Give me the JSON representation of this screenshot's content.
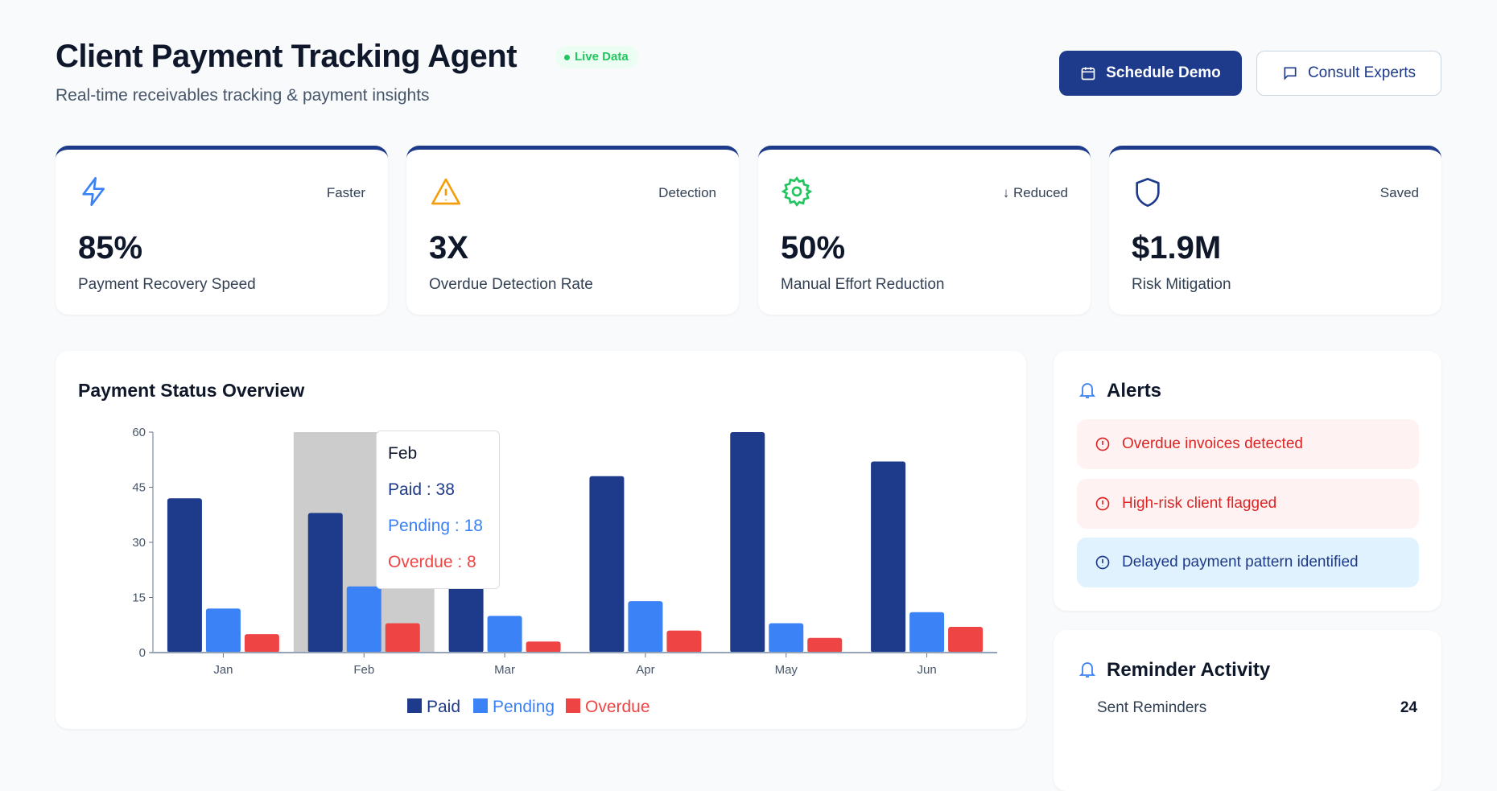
{
  "header": {
    "title": "Client Payment Tracking Agent",
    "badge": "Live Data",
    "subtitle": "Real-time receivables tracking & payment insights",
    "schedule_demo": "Schedule Demo",
    "consult_experts": "Consult Experts"
  },
  "stats": [
    {
      "icon": "lightning-icon",
      "tag": "Faster",
      "value": "85%",
      "label": "Payment Recovery Speed",
      "color": "#3b82f6"
    },
    {
      "icon": "warning-icon",
      "tag": "Detection",
      "value": "3X",
      "label": "Overdue Detection Rate",
      "color": "#f59e0b"
    },
    {
      "icon": "gear-icon",
      "tag": "↓ Reduced",
      "value": "50%",
      "label": "Manual Effort Reduction",
      "color": "#22c55e"
    },
    {
      "icon": "shield-icon",
      "tag": "Saved",
      "value": "$1.9M",
      "label": "Risk Mitigation",
      "color": "#1e3a8a"
    }
  ],
  "chart": {
    "title": "Payment Status Overview"
  },
  "chart_data": {
    "type": "bar",
    "categories": [
      "Jan",
      "Feb",
      "Mar",
      "Apr",
      "May",
      "Jun"
    ],
    "series": [
      {
        "name": "Paid",
        "color": "#1e3a8a",
        "values": [
          42,
          38,
          35,
          48,
          60,
          52
        ]
      },
      {
        "name": "Pending",
        "color": "#3b82f6",
        "values": [
          12,
          18,
          10,
          14,
          8,
          11
        ]
      },
      {
        "name": "Overdue",
        "color": "#ef4444",
        "values": [
          5,
          8,
          3,
          6,
          4,
          7
        ]
      }
    ],
    "yticks": [
      0,
      15,
      30,
      45,
      60
    ],
    "ylim": [
      0,
      60
    ],
    "legend": "bottom",
    "tooltip": {
      "category": "Feb",
      "paid": "Paid : 38",
      "pending": "Pending : 18",
      "overdue": "Overdue : 8"
    }
  },
  "alerts": {
    "title": "Alerts",
    "items": [
      {
        "text": "Overdue invoices detected",
        "level": "red"
      },
      {
        "text": "High-risk client flagged",
        "level": "red"
      },
      {
        "text": "Delayed payment pattern identified",
        "level": "blue"
      }
    ]
  },
  "reminder": {
    "title": "Reminder Activity",
    "row_label": "Sent Reminders",
    "row_value": "24"
  }
}
